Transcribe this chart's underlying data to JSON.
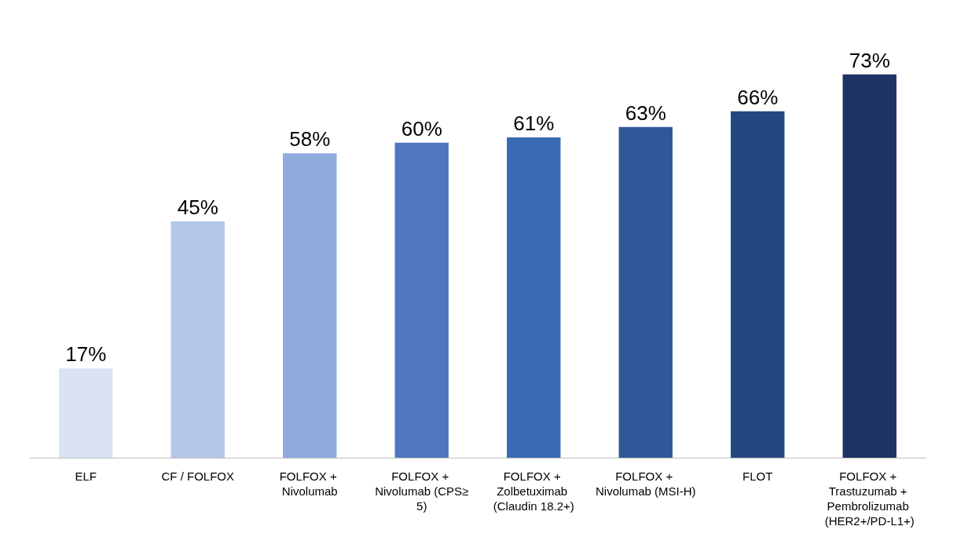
{
  "chart_data": {
    "type": "bar",
    "categories": [
      "ELF",
      "CF / FOLFOX",
      "FOLFOX + Nivolumab",
      "FOLFOX + Nivolumab (CPS≥5)",
      "FOLFOX + Zolbetuximab (Claudin 18.2+)",
      "FOLFOX + Nivolumab (MSI-H)",
      "FLOT",
      "FOLFOX + Trastuzumab + Pembrolizumab (HER2+/PD-L1+)"
    ],
    "values": [
      17,
      45,
      58,
      60,
      61,
      63,
      66,
      73
    ],
    "colors": [
      "#dae3f3",
      "#b4c7e7",
      "#8faadc",
      "#4f77bd",
      "#3a69b3",
      "#2f5898",
      "#25477f",
      "#1c3461"
    ],
    "value_labels": [
      "17%",
      "45%",
      "58%",
      "60%",
      "61%",
      "63%",
      "66%",
      "73%"
    ],
    "tick_labels": "x",
    "grid": false
  }
}
